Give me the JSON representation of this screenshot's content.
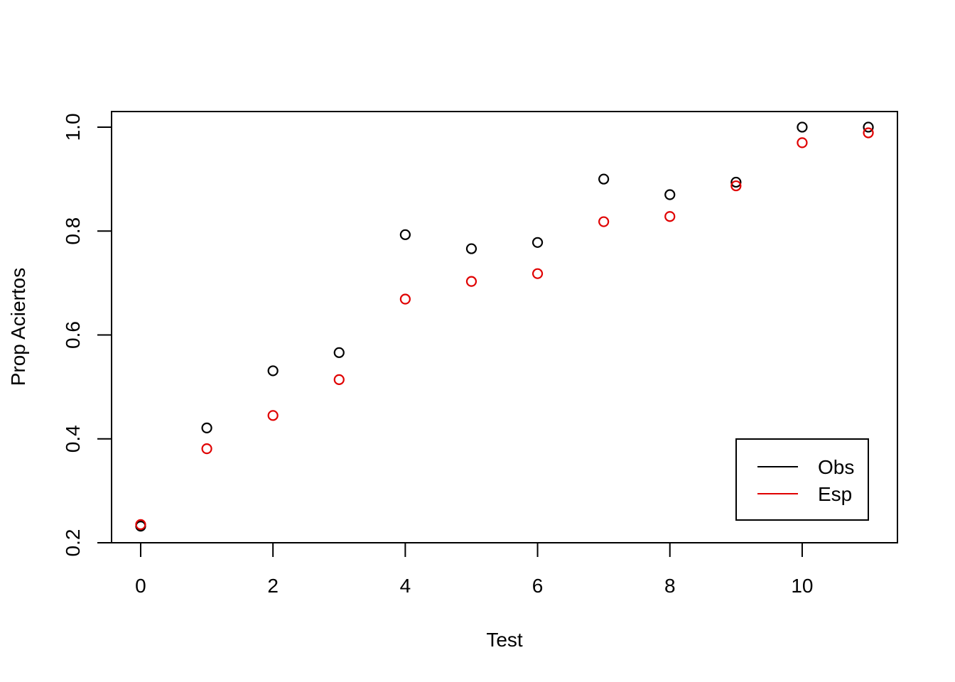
{
  "chart_data": {
    "type": "scatter",
    "title": "",
    "xlabel": "Test",
    "ylabel": "Prop Aciertos",
    "xlim": [
      -0.44,
      11.44
    ],
    "ylim": [
      0.2,
      1.03
    ],
    "x_ticks": [
      0,
      2,
      4,
      6,
      8,
      10
    ],
    "x_tick_labels": [
      "0",
      "2",
      "4",
      "6",
      "8",
      "10"
    ],
    "y_ticks": [
      0.2,
      0.4,
      0.6,
      0.8,
      1.0
    ],
    "y_tick_labels": [
      "0.2",
      "0.4",
      "0.6",
      "0.8",
      "1.0"
    ],
    "grid": false,
    "legend_position": "bottom-right",
    "x": [
      0,
      1,
      2,
      3,
      4,
      5,
      6,
      7,
      8,
      9,
      10,
      11
    ],
    "series": [
      {
        "name": "Obs",
        "color": "#000000",
        "values": [
          0.232,
          0.421,
          0.531,
          0.566,
          0.793,
          0.766,
          0.778,
          0.9,
          0.87,
          0.894,
          1.0,
          1.0
        ]
      },
      {
        "name": "Esp",
        "color": "#e00000",
        "values": [
          0.235,
          0.381,
          0.445,
          0.514,
          0.669,
          0.703,
          0.718,
          0.818,
          0.828,
          0.887,
          0.97,
          0.989
        ]
      }
    ]
  }
}
